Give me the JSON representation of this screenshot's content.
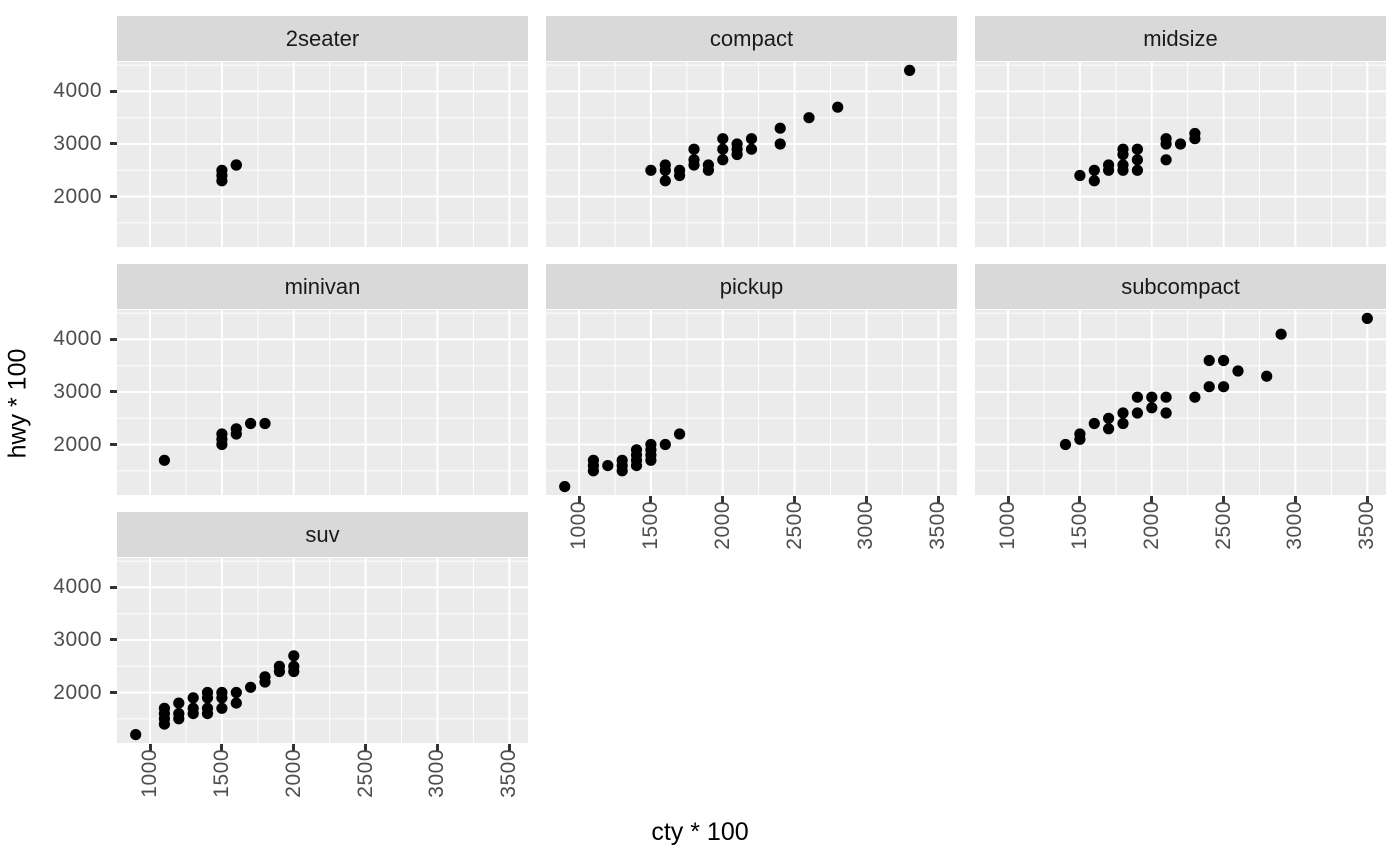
{
  "chart_data": {
    "type": "scatter",
    "title": "",
    "xlabel": "cty * 100",
    "ylabel": "hwy * 100",
    "x_domain": [
      770,
      3630
    ],
    "y_domain": [
      1040,
      4560
    ],
    "x_ticks": [
      1000,
      1500,
      2000,
      2500,
      3000,
      3500
    ],
    "y_ticks": [
      2000,
      3000,
      4000
    ],
    "x_minor_ticks": [
      1250,
      1750,
      2250,
      2750,
      3250
    ],
    "y_minor_ticks": [
      1500,
      2500,
      3500,
      4500
    ],
    "grid": "major and minor white gridlines on grey panels",
    "legend": "none",
    "facet_layout": "3 columns, row-major order, 7 facets",
    "facets": [
      {
        "label": "2seater",
        "points": [
          [
            1500,
            2300
          ],
          [
            1500,
            2400
          ],
          [
            1500,
            2500
          ],
          [
            1600,
            2600
          ],
          [
            1600,
            2600
          ]
        ]
      },
      {
        "label": "compact",
        "points": [
          [
            1500,
            2500
          ],
          [
            1600,
            2600
          ],
          [
            1600,
            2500
          ],
          [
            1600,
            2300
          ],
          [
            1700,
            2500
          ],
          [
            1700,
            2400
          ],
          [
            1800,
            2900
          ],
          [
            1800,
            2700
          ],
          [
            1800,
            2600
          ],
          [
            1900,
            2600
          ],
          [
            1900,
            2500
          ],
          [
            2000,
            3100
          ],
          [
            2000,
            2900
          ],
          [
            2000,
            2700
          ],
          [
            2100,
            3000
          ],
          [
            2100,
            2900
          ],
          [
            2100,
            2800
          ],
          [
            2200,
            3100
          ],
          [
            2200,
            2900
          ],
          [
            2400,
            3300
          ],
          [
            2400,
            3000
          ],
          [
            2600,
            3500
          ],
          [
            2800,
            3700
          ],
          [
            3300,
            4400
          ]
        ]
      },
      {
        "label": "midsize",
        "points": [
          [
            1500,
            2400
          ],
          [
            1600,
            2500
          ],
          [
            1600,
            2300
          ],
          [
            1700,
            2600
          ],
          [
            1700,
            2500
          ],
          [
            1800,
            2900
          ],
          [
            1800,
            2800
          ],
          [
            1800,
            2600
          ],
          [
            1800,
            2500
          ],
          [
            1900,
            2900
          ],
          [
            1900,
            2700
          ],
          [
            1900,
            2500
          ],
          [
            2100,
            3100
          ],
          [
            2100,
            3000
          ],
          [
            2100,
            2700
          ],
          [
            2200,
            3000
          ],
          [
            2300,
            3200
          ],
          [
            2300,
            3100
          ]
        ]
      },
      {
        "label": "minivan",
        "points": [
          [
            1100,
            1700
          ],
          [
            1500,
            2200
          ],
          [
            1500,
            2100
          ],
          [
            1500,
            2000
          ],
          [
            1600,
            2300
          ],
          [
            1600,
            2200
          ],
          [
            1700,
            2400
          ],
          [
            1800,
            2400
          ]
        ]
      },
      {
        "label": "pickup",
        "points": [
          [
            900,
            1200
          ],
          [
            1100,
            1700
          ],
          [
            1100,
            1600
          ],
          [
            1100,
            1500
          ],
          [
            1200,
            1600
          ],
          [
            1300,
            1700
          ],
          [
            1300,
            1600
          ],
          [
            1300,
            1500
          ],
          [
            1400,
            1900
          ],
          [
            1400,
            1800
          ],
          [
            1400,
            1700
          ],
          [
            1400,
            1600
          ],
          [
            1500,
            2000
          ],
          [
            1500,
            1900
          ],
          [
            1500,
            1800
          ],
          [
            1500,
            1700
          ],
          [
            1600,
            2000
          ],
          [
            1700,
            2200
          ]
        ]
      },
      {
        "label": "subcompact",
        "points": [
          [
            1400,
            2000
          ],
          [
            1500,
            2200
          ],
          [
            1500,
            2100
          ],
          [
            1600,
            2400
          ],
          [
            1700,
            2500
          ],
          [
            1700,
            2300
          ],
          [
            1800,
            2600
          ],
          [
            1800,
            2400
          ],
          [
            1900,
            2900
          ],
          [
            1900,
            2600
          ],
          [
            2000,
            2900
          ],
          [
            2000,
            2700
          ],
          [
            2100,
            2900
          ],
          [
            2100,
            2600
          ],
          [
            2300,
            2900
          ],
          [
            2400,
            3600
          ],
          [
            2500,
            3600
          ],
          [
            2400,
            3100
          ],
          [
            2500,
            3100
          ],
          [
            2600,
            3400
          ],
          [
            2800,
            3300
          ],
          [
            2900,
            4100
          ],
          [
            3500,
            4400
          ]
        ]
      },
      {
        "label": "suv",
        "points": [
          [
            900,
            1200
          ],
          [
            1100,
            1700
          ],
          [
            1100,
            1600
          ],
          [
            1100,
            1500
          ],
          [
            1100,
            1400
          ],
          [
            1200,
            1800
          ],
          [
            1200,
            1600
          ],
          [
            1200,
            1500
          ],
          [
            1300,
            1900
          ],
          [
            1300,
            1700
          ],
          [
            1300,
            1600
          ],
          [
            1400,
            2000
          ],
          [
            1400,
            1900
          ],
          [
            1400,
            1700
          ],
          [
            1400,
            1600
          ],
          [
            1500,
            2000
          ],
          [
            1500,
            1900
          ],
          [
            1500,
            1700
          ],
          [
            1600,
            2000
          ],
          [
            1600,
            1800
          ],
          [
            1700,
            2100
          ],
          [
            1800,
            2300
          ],
          [
            1800,
            2200
          ],
          [
            1900,
            2500
          ],
          [
            1900,
            2400
          ],
          [
            2000,
            2700
          ],
          [
            2000,
            2500
          ],
          [
            2000,
            2400
          ]
        ]
      }
    ],
    "theme": {
      "background": "#FFFFFF",
      "panel_bg": "#EBEBEB",
      "strip_bg": "#D9D9D9",
      "strip_text": "#1A1A1A",
      "grid_color": "#FFFFFF",
      "tick_label_color": "#4D4D4D",
      "tick_mark_color": "#333333",
      "axis_title_color": "#000000",
      "point_color": "#000000"
    }
  }
}
